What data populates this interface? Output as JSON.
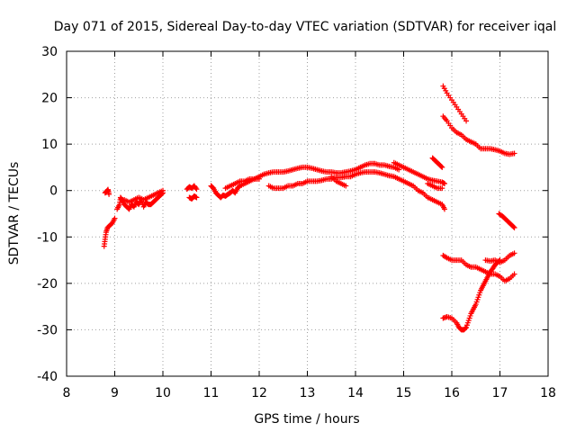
{
  "chart_data": {
    "type": "scatter",
    "title": "Day 071 of 2015, Sidereal Day-to-day VTEC variation (SDTVAR) for receiver iqal",
    "xlabel": "GPS time / hours",
    "ylabel": "SDTVAR / TECUs",
    "xlim": [
      8,
      18
    ],
    "ylim": [
      -40,
      30
    ],
    "xticks": [
      8,
      9,
      10,
      11,
      12,
      13,
      14,
      15,
      16,
      17,
      18
    ],
    "yticks": [
      -40,
      -30,
      -20,
      -10,
      0,
      10,
      20,
      30
    ],
    "grid": true,
    "marker": "+",
    "color": "#ff0000",
    "series": [
      {
        "name": "a",
        "points": [
          [
            8.78,
            -12
          ],
          [
            8.8,
            -10.5
          ],
          [
            8.82,
            -9
          ],
          [
            8.85,
            -8
          ],
          [
            8.9,
            -7.5
          ],
          [
            8.95,
            -7
          ],
          [
            9.0,
            -6
          ]
        ]
      },
      {
        "name": "b",
        "points": [
          [
            8.8,
            -0.5
          ],
          [
            8.83,
            -0.2
          ],
          [
            8.86,
            0.2
          ],
          [
            8.88,
            -0.8
          ]
        ]
      },
      {
        "name": "c",
        "points": [
          [
            9.05,
            -4
          ],
          [
            9.1,
            -3
          ],
          [
            9.12,
            -1.5
          ],
          [
            9.15,
            -2
          ],
          [
            9.2,
            -3
          ],
          [
            9.25,
            -3.5
          ],
          [
            9.3,
            -4
          ],
          [
            9.35,
            -3
          ],
          [
            9.4,
            -3.5
          ],
          [
            9.45,
            -2.5
          ],
          [
            9.5,
            -3
          ],
          [
            9.55,
            -2
          ],
          [
            9.6,
            -3.5
          ],
          [
            9.65,
            -2.5
          ],
          [
            9.7,
            -3
          ],
          [
            9.75,
            -3
          ],
          [
            9.8,
            -2.5
          ],
          [
            9.85,
            -2
          ],
          [
            9.9,
            -1.5
          ],
          [
            9.95,
            -1
          ],
          [
            10.0,
            -0.5
          ]
        ]
      },
      {
        "name": "d",
        "points": [
          [
            9.2,
            -2
          ],
          [
            9.3,
            -2.5
          ],
          [
            9.4,
            -2
          ],
          [
            9.5,
            -1.5
          ],
          [
            9.6,
            -2
          ],
          [
            9.7,
            -1.5
          ],
          [
            9.8,
            -1
          ],
          [
            9.9,
            -0.5
          ],
          [
            10.0,
            0
          ]
        ]
      },
      {
        "name": "e",
        "points": [
          [
            10.5,
            0.3
          ],
          [
            10.55,
            0.8
          ],
          [
            10.6,
            0.5
          ],
          [
            10.65,
            1
          ],
          [
            10.7,
            0.3
          ],
          [
            10.55,
            -1.5
          ],
          [
            10.6,
            -1.8
          ],
          [
            10.65,
            -1.2
          ],
          [
            10.7,
            -1.5
          ]
        ]
      },
      {
        "name": "f",
        "points": [
          [
            11.0,
            1
          ],
          [
            11.05,
            0.5
          ],
          [
            11.1,
            -0.5
          ],
          [
            11.15,
            -1
          ],
          [
            11.2,
            -1.5
          ],
          [
            11.25,
            -1
          ],
          [
            11.3,
            -1.2
          ],
          [
            11.35,
            -0.8
          ],
          [
            11.4,
            -0.5
          ],
          [
            11.45,
            0
          ],
          [
            11.5,
            -0.5
          ],
          [
            11.55,
            0.5
          ],
          [
            11.6,
            1
          ],
          [
            11.7,
            1.5
          ],
          [
            11.8,
            2
          ],
          [
            11.9,
            2.5
          ],
          [
            12.0,
            3
          ],
          [
            12.1,
            3.5
          ],
          [
            12.2,
            3.8
          ],
          [
            12.3,
            4
          ],
          [
            12.4,
            4
          ],
          [
            12.5,
            4
          ],
          [
            12.6,
            4.2
          ],
          [
            12.7,
            4.5
          ],
          [
            12.8,
            4.8
          ],
          [
            12.9,
            5
          ],
          [
            13.0,
            5
          ],
          [
            13.1,
            4.8
          ],
          [
            13.2,
            4.5
          ],
          [
            13.3,
            4.2
          ],
          [
            13.4,
            4
          ],
          [
            13.5,
            4
          ],
          [
            13.6,
            3.8
          ],
          [
            13.7,
            3.8
          ],
          [
            13.8,
            4
          ],
          [
            13.9,
            4.2
          ],
          [
            14.0,
            4.5
          ],
          [
            14.1,
            5
          ],
          [
            14.2,
            5.5
          ],
          [
            14.3,
            5.8
          ],
          [
            14.4,
            5.8
          ],
          [
            14.5,
            5.5
          ],
          [
            14.6,
            5.5
          ],
          [
            14.7,
            5.2
          ],
          [
            14.8,
            5
          ],
          [
            14.9,
            4.5
          ]
        ]
      },
      {
        "name": "g",
        "points": [
          [
            11.3,
            0.5
          ],
          [
            11.4,
            1
          ],
          [
            11.5,
            1.5
          ],
          [
            11.6,
            2
          ],
          [
            11.7,
            2
          ],
          [
            11.8,
            2.5
          ],
          [
            11.9,
            2.5
          ],
          [
            12.0,
            2.5
          ]
        ]
      },
      {
        "name": "h",
        "points": [
          [
            12.2,
            1
          ],
          [
            12.3,
            0.5
          ],
          [
            12.4,
            0.5
          ],
          [
            12.5,
            0.5
          ],
          [
            12.6,
            1
          ],
          [
            12.7,
            1
          ],
          [
            12.8,
            1.5
          ],
          [
            12.9,
            1.5
          ],
          [
            13.0,
            2
          ],
          [
            13.1,
            2
          ],
          [
            13.2,
            2
          ],
          [
            13.3,
            2.2
          ],
          [
            13.4,
            2.5
          ],
          [
            13.5,
            2.5
          ],
          [
            13.6,
            2.8
          ],
          [
            13.7,
            2.8
          ],
          [
            13.8,
            3
          ],
          [
            13.9,
            3
          ],
          [
            14.0,
            3.5
          ],
          [
            14.1,
            3.8
          ],
          [
            14.2,
            4
          ],
          [
            14.3,
            4
          ],
          [
            14.4,
            4
          ],
          [
            14.5,
            3.8
          ],
          [
            14.6,
            3.5
          ],
          [
            14.7,
            3.2
          ],
          [
            14.8,
            3
          ],
          [
            14.9,
            2.5
          ],
          [
            15.0,
            2
          ],
          [
            15.1,
            1.5
          ],
          [
            15.2,
            1
          ],
          [
            15.3,
            0
          ],
          [
            15.4,
            -0.5
          ],
          [
            15.5,
            -1.5
          ],
          [
            15.6,
            -2
          ],
          [
            15.7,
            -2.5
          ],
          [
            15.8,
            -3
          ],
          [
            15.85,
            -4
          ]
        ]
      },
      {
        "name": "i",
        "points": [
          [
            13.5,
            3
          ],
          [
            13.6,
            2
          ],
          [
            13.7,
            1.5
          ],
          [
            13.8,
            1
          ]
        ]
      },
      {
        "name": "j",
        "points": [
          [
            14.8,
            6
          ],
          [
            14.9,
            5.5
          ],
          [
            15.0,
            5
          ],
          [
            15.1,
            4.5
          ],
          [
            15.2,
            4
          ],
          [
            15.3,
            3.5
          ],
          [
            15.4,
            3
          ],
          [
            15.5,
            2.5
          ],
          [
            15.6,
            2.2
          ],
          [
            15.7,
            2
          ],
          [
            15.8,
            1.8
          ],
          [
            15.85,
            1.5
          ]
        ]
      },
      {
        "name": "k",
        "points": [
          [
            15.5,
            1.5
          ],
          [
            15.6,
            1
          ],
          [
            15.7,
            0.5
          ],
          [
            15.8,
            0.5
          ]
        ]
      },
      {
        "name": "l",
        "points": [
          [
            15.6,
            7
          ],
          [
            15.65,
            6.5
          ],
          [
            15.7,
            6
          ],
          [
            15.75,
            5.5
          ],
          [
            15.8,
            5
          ]
        ]
      },
      {
        "name": "m",
        "points": [
          [
            15.82,
            22.5
          ],
          [
            15.9,
            21
          ],
          [
            16.0,
            19.5
          ],
          [
            16.1,
            18
          ],
          [
            16.2,
            16.5
          ],
          [
            16.3,
            15
          ]
        ]
      },
      {
        "name": "n",
        "points": [
          [
            15.82,
            16
          ],
          [
            15.9,
            15
          ],
          [
            16.0,
            13.5
          ],
          [
            16.1,
            12.5
          ],
          [
            16.2,
            12
          ],
          [
            16.3,
            11
          ],
          [
            16.4,
            10.5
          ],
          [
            16.5,
            10
          ],
          [
            16.6,
            9
          ],
          [
            16.7,
            9
          ],
          [
            16.8,
            9
          ],
          [
            16.9,
            8.8
          ],
          [
            17.0,
            8.5
          ],
          [
            17.1,
            8
          ],
          [
            17.2,
            7.8
          ],
          [
            17.3,
            8
          ]
        ]
      },
      {
        "name": "o",
        "points": [
          [
            16.98,
            -5
          ],
          [
            17.05,
            -5.5
          ],
          [
            17.1,
            -6
          ],
          [
            17.15,
            -6.5
          ],
          [
            17.2,
            -7
          ],
          [
            17.25,
            -7.5
          ],
          [
            17.3,
            -8
          ]
        ]
      },
      {
        "name": "p",
        "points": [
          [
            15.82,
            -14
          ],
          [
            15.9,
            -14.5
          ],
          [
            16.0,
            -15
          ],
          [
            16.1,
            -15
          ],
          [
            16.2,
            -15
          ],
          [
            16.3,
            -16
          ],
          [
            16.4,
            -16.5
          ],
          [
            16.5,
            -16.5
          ],
          [
            16.6,
            -17
          ],
          [
            16.7,
            -17.5
          ],
          [
            16.8,
            -18
          ],
          [
            16.9,
            -18
          ],
          [
            17.0,
            -18.5
          ],
          [
            17.1,
            -19.5
          ],
          [
            17.2,
            -19
          ],
          [
            17.3,
            -18
          ]
        ]
      },
      {
        "name": "q",
        "points": [
          [
            15.82,
            -27.5
          ],
          [
            15.9,
            -27.2
          ],
          [
            16.0,
            -27.5
          ],
          [
            16.1,
            -28.5
          ],
          [
            16.15,
            -29.5
          ],
          [
            16.2,
            -30
          ],
          [
            16.25,
            -30
          ],
          [
            16.3,
            -29.5
          ],
          [
            16.35,
            -28
          ],
          [
            16.4,
            -26.5
          ],
          [
            16.45,
            -25.5
          ],
          [
            16.5,
            -24.5
          ],
          [
            16.55,
            -23
          ],
          [
            16.6,
            -21.5
          ],
          [
            16.65,
            -20.5
          ],
          [
            16.7,
            -19.5
          ],
          [
            16.75,
            -18.5
          ],
          [
            16.8,
            -17.5
          ],
          [
            16.85,
            -16.8
          ],
          [
            16.9,
            -16
          ],
          [
            16.95,
            -15.5
          ],
          [
            17.0,
            -15
          ]
        ]
      },
      {
        "name": "r",
        "points": [
          [
            16.7,
            -15
          ],
          [
            16.8,
            -15.2
          ],
          [
            16.9,
            -15
          ],
          [
            17.0,
            -15.5
          ],
          [
            17.1,
            -15
          ],
          [
            17.2,
            -14
          ],
          [
            17.3,
            -13.5
          ]
        ]
      }
    ]
  }
}
